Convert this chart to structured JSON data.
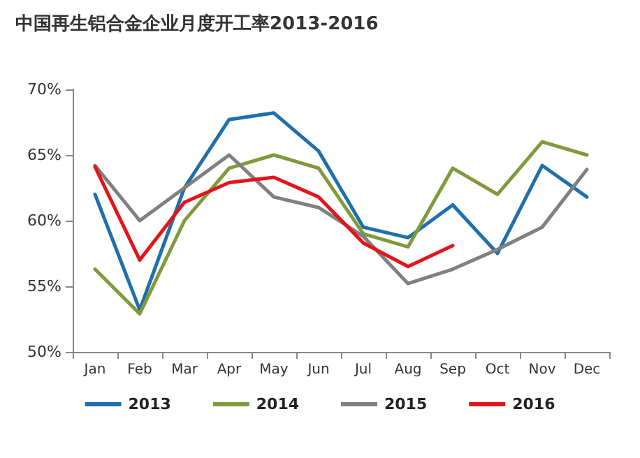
{
  "chart_data": {
    "type": "line",
    "title": "中国再生铝合金企业月度开工率2013-2016",
    "categories": [
      "Jan",
      "Feb",
      "Mar",
      "Apr",
      "May",
      "Jun",
      "Jul",
      "Aug",
      "Sep",
      "Oct",
      "Nov",
      "Dec"
    ],
    "series": [
      {
        "name": "2013",
        "color": "#1f6fad",
        "values": [
          62,
          53.2,
          62.5,
          67.7,
          68.2,
          65.3,
          59.5,
          58.7,
          61.2,
          57.5,
          64.2,
          61.8
        ]
      },
      {
        "name": "2014",
        "color": "#7f9a3c",
        "values": [
          56.3,
          52.9,
          60,
          64,
          65,
          64,
          59,
          58,
          64,
          62,
          66,
          65
        ]
      },
      {
        "name": "2015",
        "color": "#808080",
        "values": [
          64.2,
          60,
          62.5,
          65,
          61.8,
          61,
          58.8,
          55.2,
          56.3,
          57.8,
          59.5,
          63.9
        ]
      },
      {
        "name": "2016",
        "color": "#e3141b",
        "values": [
          64.1,
          57,
          61.4,
          62.9,
          63.3,
          61.8,
          58.3,
          56.5,
          58.1,
          null,
          null,
          null
        ]
      }
    ],
    "ylim": [
      50,
      70
    ],
    "yticks": [
      {
        "value": 50,
        "label": "50%"
      },
      {
        "value": 55,
        "label": "55%"
      },
      {
        "value": 60,
        "label": "60%"
      },
      {
        "value": 65,
        "label": "65%"
      },
      {
        "value": 70,
        "label": "70%"
      }
    ],
    "grid": false,
    "legend": "bottom",
    "marker": "none",
    "line_style": "solid"
  }
}
